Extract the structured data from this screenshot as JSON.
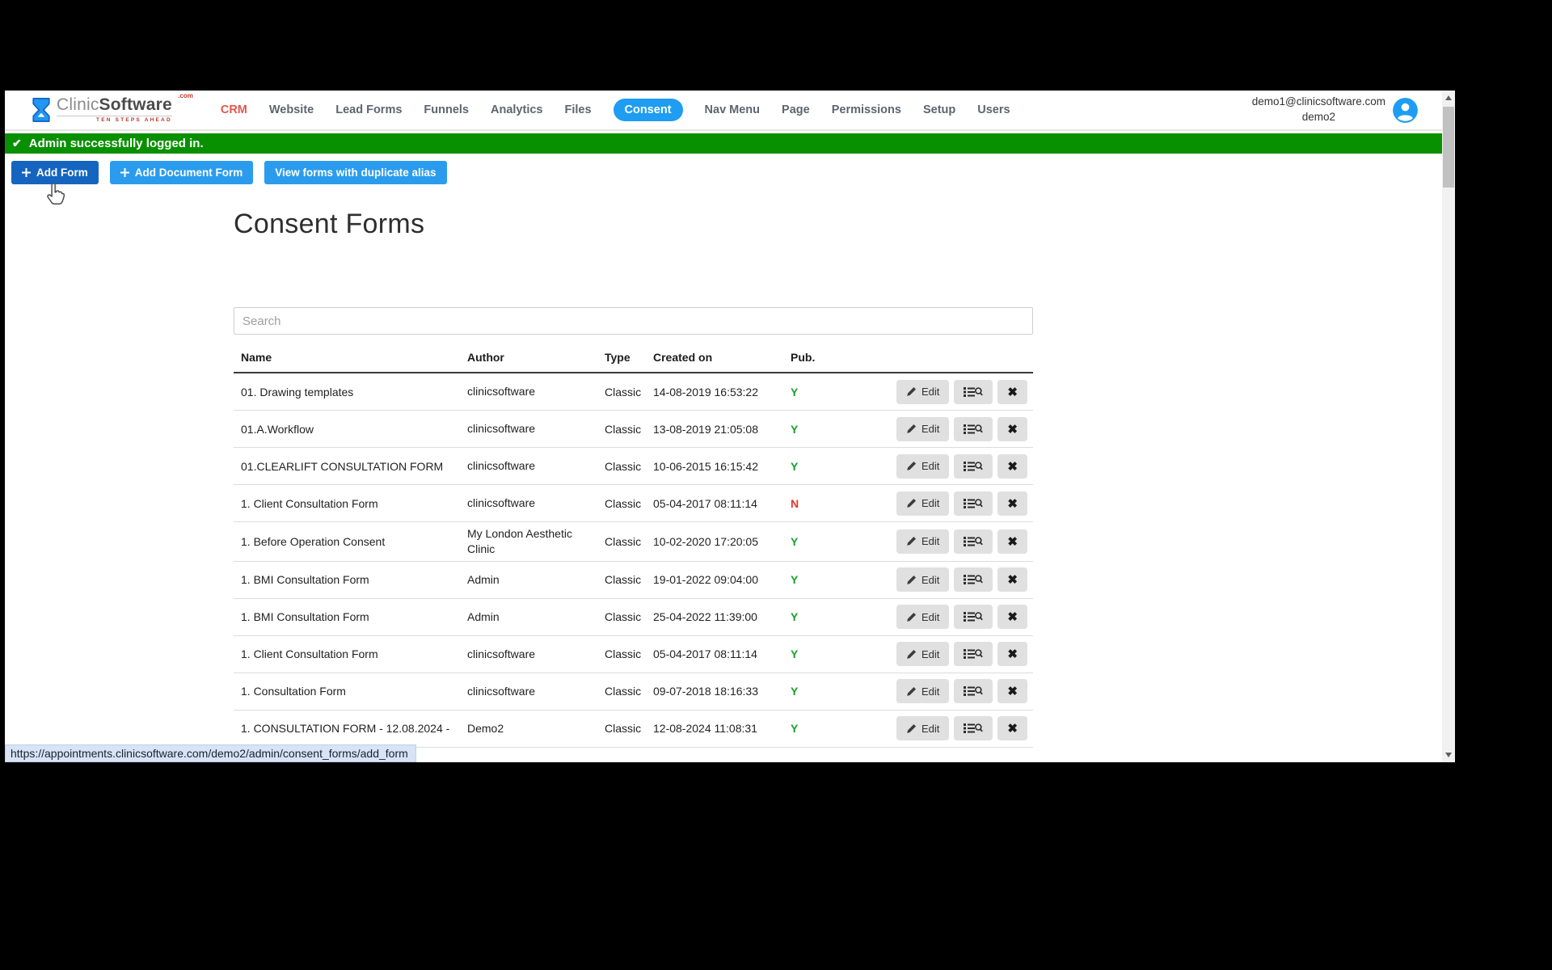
{
  "nav": {
    "logo": {
      "brand_first": "Clinic",
      "brand_second": "Software",
      "tld": ".com",
      "tagline": "TEN STEPS AHEAD"
    },
    "items": [
      {
        "label": "CRM",
        "accent": true
      },
      {
        "label": "Website"
      },
      {
        "label": "Lead Forms"
      },
      {
        "label": "Funnels"
      },
      {
        "label": "Analytics"
      },
      {
        "label": "Files"
      },
      {
        "label": "Consent",
        "active": true
      },
      {
        "label": "Nav Menu"
      },
      {
        "label": "Page"
      },
      {
        "label": "Permissions"
      },
      {
        "label": "Setup"
      },
      {
        "label": "Users"
      }
    ],
    "user": {
      "email": "demo1@clinicsoftware.com",
      "account": "demo2"
    }
  },
  "alert": {
    "text": "Admin successfully logged in."
  },
  "toolbar": {
    "buttons": [
      {
        "label": "Add Form"
      },
      {
        "label": "Add Document Form"
      },
      {
        "label": "View forms with duplicate alias"
      }
    ]
  },
  "page": {
    "title": "Consent Forms"
  },
  "search": {
    "placeholder": "Search"
  },
  "table": {
    "headers": [
      "Name",
      "Author",
      "Type",
      "Created on",
      "Pub."
    ],
    "edit_label": "Edit",
    "rows": [
      {
        "name": "01. Drawing templates",
        "author": "clinicsoftware",
        "type": "Classic",
        "created": "14-08-2019 16:53:22",
        "pub": "Y"
      },
      {
        "name": "01.A.Workflow",
        "author": "clinicsoftware",
        "type": "Classic",
        "created": "13-08-2019 21:05:08",
        "pub": "Y"
      },
      {
        "name": "01.CLEARLIFT CONSULTATION FORM",
        "author": "clinicsoftware",
        "type": "Classic",
        "created": "10-06-2015 16:15:42",
        "pub": "Y"
      },
      {
        "name": "1. Client Consultation Form",
        "author": "clinicsoftware",
        "type": "Classic",
        "created": "05-04-2017 08:11:14",
        "pub": "N"
      },
      {
        "name": "1. Before Operation Consent",
        "author": "My London Aesthetic Clinic",
        "type": "Classic",
        "created": "10-02-2020 17:20:05",
        "pub": "Y"
      },
      {
        "name": "1. BMI Consultation Form",
        "author": "Admin",
        "type": "Classic",
        "created": "19-01-2022 09:04:00",
        "pub": "Y"
      },
      {
        "name": "1. BMI Consultation Form",
        "author": "Admin",
        "type": "Classic",
        "created": "25-04-2022 11:39:00",
        "pub": "Y"
      },
      {
        "name": "1. Client Consultation Form",
        "author": "clinicsoftware",
        "type": "Classic",
        "created": "05-04-2017 08:11:14",
        "pub": "Y"
      },
      {
        "name": "1. Consultation Form",
        "author": "clinicsoftware",
        "type": "Classic",
        "created": "09-07-2018 18:16:33",
        "pub": "Y"
      },
      {
        "name": "1. CONSULTATION FORM - 12.08.2024 -",
        "author": "Demo2",
        "type": "Classic",
        "created": "12-08-2024 11:08:31",
        "pub": "Y"
      }
    ]
  },
  "statusbar": {
    "url": "https://appointments.clinicsoftware.com/demo2/admin/consent_forms/add_form"
  },
  "colors": {
    "accent_blue": "#1e9df2",
    "button_blue": "#2b9ced",
    "button_blue_dark": "#1565c0",
    "alert_green": "#089000",
    "pub_yes_green": "#18a02c",
    "pub_no_red": "#e8382e",
    "crm_red": "#e2574c",
    "action_gray": "#e0e0e0",
    "status_bg": "#d7e4f5"
  }
}
